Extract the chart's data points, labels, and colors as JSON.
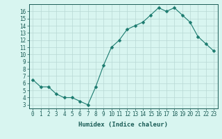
{
  "x": [
    0,
    1,
    2,
    3,
    4,
    5,
    6,
    7,
    8,
    9,
    10,
    11,
    12,
    13,
    14,
    15,
    16,
    17,
    18,
    19,
    20,
    21,
    22,
    23
  ],
  "y": [
    6.5,
    5.5,
    5.5,
    4.5,
    4.0,
    4.0,
    3.5,
    3.0,
    5.5,
    8.5,
    11.0,
    12.0,
    13.5,
    14.0,
    14.5,
    15.5,
    16.5,
    16.0,
    16.5,
    15.5,
    14.5,
    12.5,
    11.5,
    10.5
  ],
  "line_color": "#1a7a6e",
  "marker": "D",
  "marker_size": 2.5,
  "bg_color": "#d8f5f0",
  "grid_color": "#b8d8d4",
  "xlabel": "Humidex (Indice chaleur)",
  "xlim": [
    -0.5,
    23.5
  ],
  "ylim": [
    2.5,
    17
  ],
  "xtick_labels": [
    "0",
    "1",
    "2",
    "3",
    "4",
    "5",
    "6",
    "7",
    "8",
    "9",
    "10",
    "11",
    "12",
    "13",
    "14",
    "15",
    "16",
    "17",
    "18",
    "19",
    "20",
    "21",
    "22",
    "23"
  ],
  "ytick_values": [
    3,
    4,
    5,
    6,
    7,
    8,
    9,
    10,
    11,
    12,
    13,
    14,
    15,
    16
  ],
  "axis_fontsize": 5.5,
  "label_fontsize": 6.5,
  "tick_color": "#1a5c56",
  "spine_color": "#1a5c56"
}
